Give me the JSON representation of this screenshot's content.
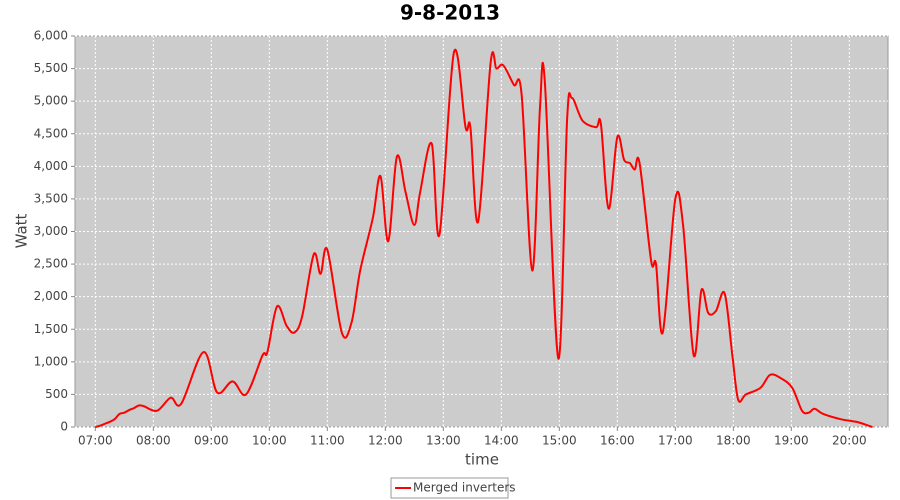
{
  "chart_data": {
    "type": "line",
    "title": "9-8-2013",
    "x_label": "time",
    "y_label": "Watt",
    "x": [
      "07:00",
      "07:05",
      "07:10",
      "07:15",
      "07:20",
      "07:25",
      "07:30",
      "07:35",
      "07:40",
      "07:45",
      "07:50",
      "08:04",
      "08:18",
      "08:29",
      "08:52",
      "09:06",
      "09:22",
      "09:36",
      "09:53",
      "09:58",
      "10:08",
      "10:18",
      "10:26",
      "10:34",
      "10:46",
      "10:53",
      "11:00",
      "11:15",
      "11:25",
      "11:34",
      "11:47",
      "11:55",
      "12:03",
      "12:12",
      "12:21",
      "12:30",
      "12:36",
      "12:48",
      "12:56",
      "13:11",
      "13:23",
      "13:28",
      "13:36",
      "13:49",
      "13:55",
      "14:02",
      "14:13",
      "14:21",
      "14:32",
      "14:40",
      "14:45",
      "14:59",
      "15:08",
      "15:13",
      "15:24",
      "15:38",
      "15:43",
      "15:51",
      "16:00",
      "16:07",
      "16:13",
      "16:18",
      "16:23",
      "16:35",
      "16:40",
      "16:47",
      "17:00",
      "17:08",
      "17:19",
      "17:27",
      "17:34",
      "17:42",
      "17:51",
      "17:59",
      "18:05",
      "18:13",
      "18:28",
      "18:38",
      "18:49",
      "19:01",
      "19:11",
      "19:18",
      "19:24",
      "19:33",
      "19:51",
      "20:07",
      "20:18",
      "20:24"
    ],
    "series": [
      {
        "name": "Merged inverters",
        "color": "#ff0000",
        "values": [
          0,
          20,
          50,
          80,
          120,
          200,
          220,
          260,
          290,
          330,
          320,
          250,
          450,
          360,
          1150,
          530,
          700,
          500,
          1100,
          1150,
          1850,
          1550,
          1450,
          1700,
          2650,
          2350,
          2720,
          1450,
          1600,
          2400,
          3200,
          3850,
          2850,
          4150,
          3600,
          3100,
          3600,
          4350,
          2950,
          5750,
          4600,
          4600,
          3150,
          5600,
          5500,
          5550,
          5250,
          5100,
          2400,
          4900,
          5300,
          1050,
          4700,
          5050,
          4700,
          4600,
          4650,
          3350,
          4450,
          4100,
          4050,
          3950,
          4050,
          2550,
          2500,
          1450,
          3500,
          3100,
          1100,
          2100,
          1750,
          1780,
          2050,
          1100,
          420,
          500,
          600,
          800,
          750,
          600,
          250,
          220,
          280,
          200,
          120,
          80,
          30,
          0
        ]
      }
    ],
    "xlim": [
      "06:39",
      "20:40"
    ],
    "xticks": [
      "07:00",
      "08:00",
      "09:00",
      "10:00",
      "11:00",
      "12:00",
      "13:00",
      "14:00",
      "15:00",
      "16:00",
      "17:00",
      "18:00",
      "19:00",
      "20:00"
    ],
    "ylim": [
      0,
      6000
    ],
    "yticks": [
      0,
      500,
      {
        "value": 1000,
        "label": "1,000"
      },
      {
        "value": 1500,
        "label": "1,500"
      },
      {
        "value": 2000,
        "label": "2,000"
      },
      {
        "value": 2500,
        "label": "2,500"
      },
      {
        "value": 3000,
        "label": "3,000"
      },
      {
        "value": 3500,
        "label": "3,500"
      },
      {
        "value": 4000,
        "label": "4,000"
      },
      {
        "value": 4500,
        "label": "4,500"
      },
      {
        "value": 5000,
        "label": "5,000"
      },
      {
        "value": 5500,
        "label": "5,500"
      },
      {
        "value": 6000,
        "label": "6,000"
      }
    ],
    "grid": true
  }
}
